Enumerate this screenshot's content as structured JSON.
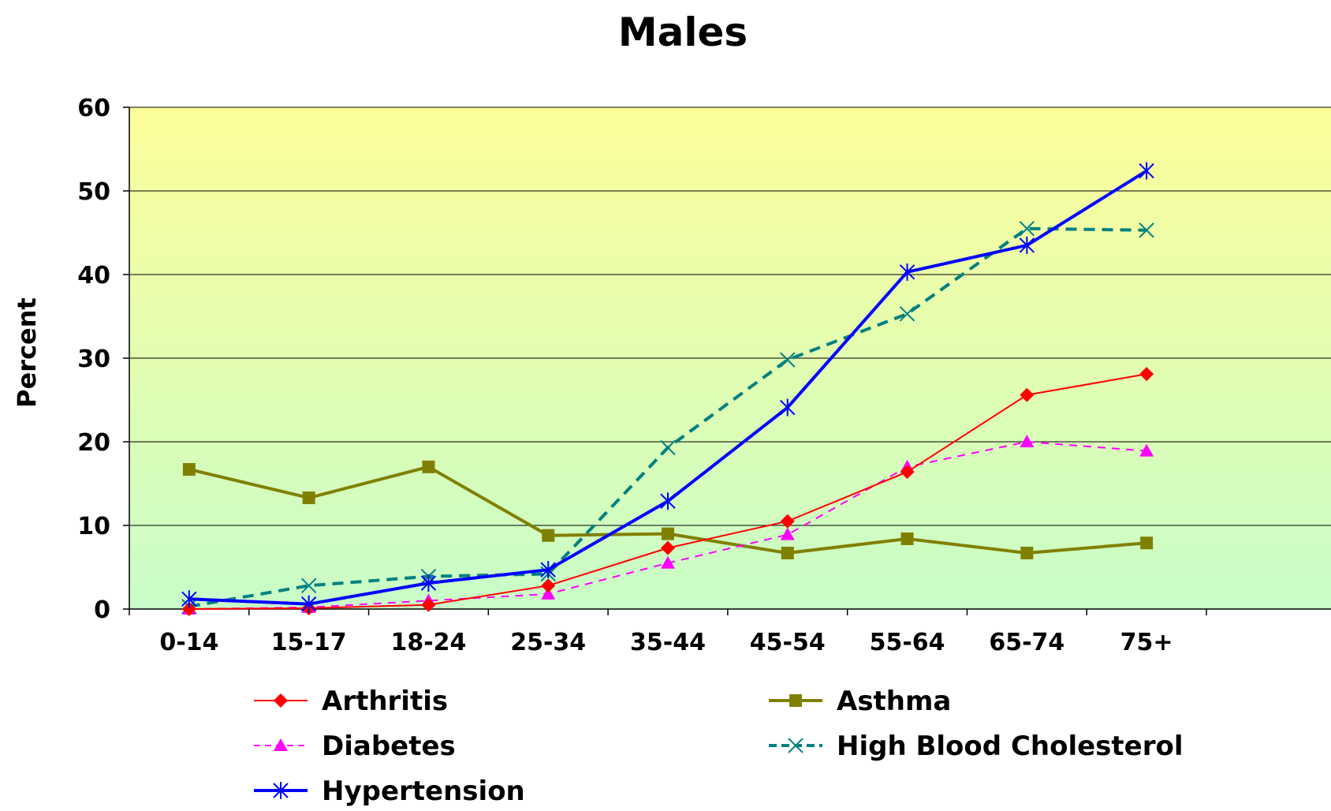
{
  "chart_data": {
    "type": "line",
    "title": "Males",
    "ylabel": "Percent",
    "xlabel": "",
    "ylim": [
      0,
      60
    ],
    "yticks": [
      0,
      10,
      20,
      30,
      40,
      50,
      60
    ],
    "grid": true,
    "legend_position": "bottom",
    "categories": [
      "0-14",
      "15-17",
      "18-24",
      "25-34",
      "35-44",
      "45-54",
      "55-64",
      "65-74",
      "75+"
    ],
    "series": [
      {
        "name": "Arthritis",
        "color": "#ff0000",
        "marker": "diamond",
        "dash": "solid",
        "values": [
          0.0,
          0.1,
          0.5,
          2.8,
          7.3,
          10.5,
          16.4,
          25.6,
          28.1
        ]
      },
      {
        "name": "Asthma",
        "color": "#808000",
        "marker": "square",
        "dash": "solid",
        "values": [
          16.7,
          13.3,
          17.0,
          8.8,
          9.0,
          6.7,
          8.4,
          6.7,
          7.9
        ]
      },
      {
        "name": "Diabetes",
        "color": "#ff00ff",
        "marker": "triangle",
        "dash": "dashed",
        "values": [
          0.0,
          0.2,
          1.0,
          1.8,
          5.5,
          8.9,
          17.0,
          20.0,
          18.9
        ]
      },
      {
        "name": "High Blood Cholesterol",
        "color": "#008080",
        "marker": "x",
        "dash": "dashed-thick",
        "values": [
          0.3,
          2.8,
          3.9,
          4.2,
          19.3,
          29.8,
          35.3,
          45.5,
          45.3
        ]
      },
      {
        "name": "Hypertension",
        "color": "#0000ff",
        "marker": "asterisk",
        "dash": "solid-thick",
        "values": [
          1.2,
          0.6,
          3.1,
          4.7,
          12.9,
          24.1,
          40.3,
          43.5,
          52.4
        ]
      }
    ],
    "background_gradient": {
      "top": "#fdfd9a",
      "bottom": "#c8fdc8"
    }
  }
}
